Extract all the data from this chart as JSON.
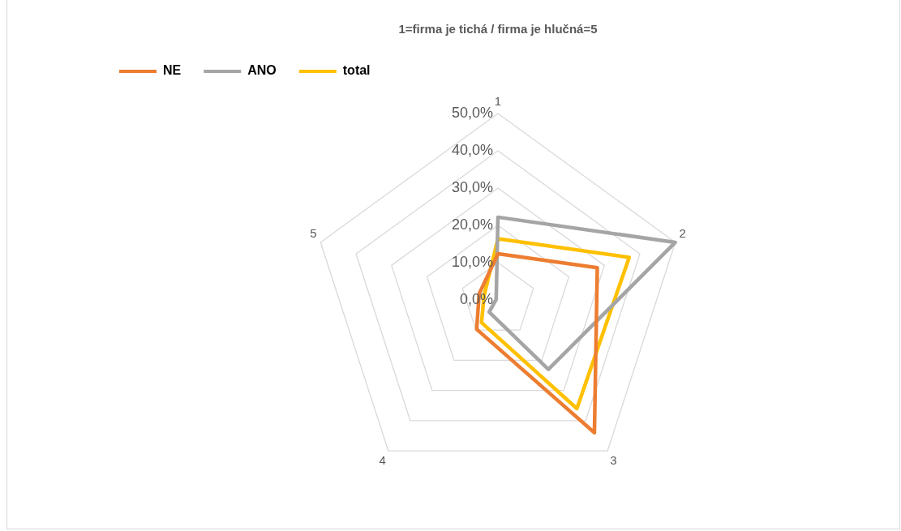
{
  "chart_data": {
    "type": "radar",
    "title": "1=firma je tichá / firma je hlučná=5",
    "categories": [
      "1",
      "2",
      "3",
      "4",
      "5"
    ],
    "series": [
      {
        "name": "NE",
        "color": "#ed7d31",
        "values": [
          12.4,
          28,
          44,
          9.7,
          5.3
        ]
      },
      {
        "name": "ANO",
        "color": "#a5a5a5",
        "values": [
          22.2,
          50,
          23,
          4,
          0.5
        ]
      },
      {
        "name": "total",
        "color": "#ffc000",
        "values": [
          16.4,
          37,
          36,
          7.5,
          3.9
        ]
      }
    ],
    "ylim": [
      0,
      50
    ],
    "yticks": [
      {
        "value": 0,
        "label": "0,0%"
      },
      {
        "value": 10,
        "label": "10,0%"
      },
      {
        "value": 20,
        "label": "20,0%"
      },
      {
        "value": 30,
        "label": "30,0%"
      },
      {
        "value": 40,
        "label": "40,0%"
      },
      {
        "value": 50,
        "label": "50,0%"
      }
    ],
    "grid": true,
    "legend": "top left",
    "marker": "none",
    "line_style": "solid"
  }
}
